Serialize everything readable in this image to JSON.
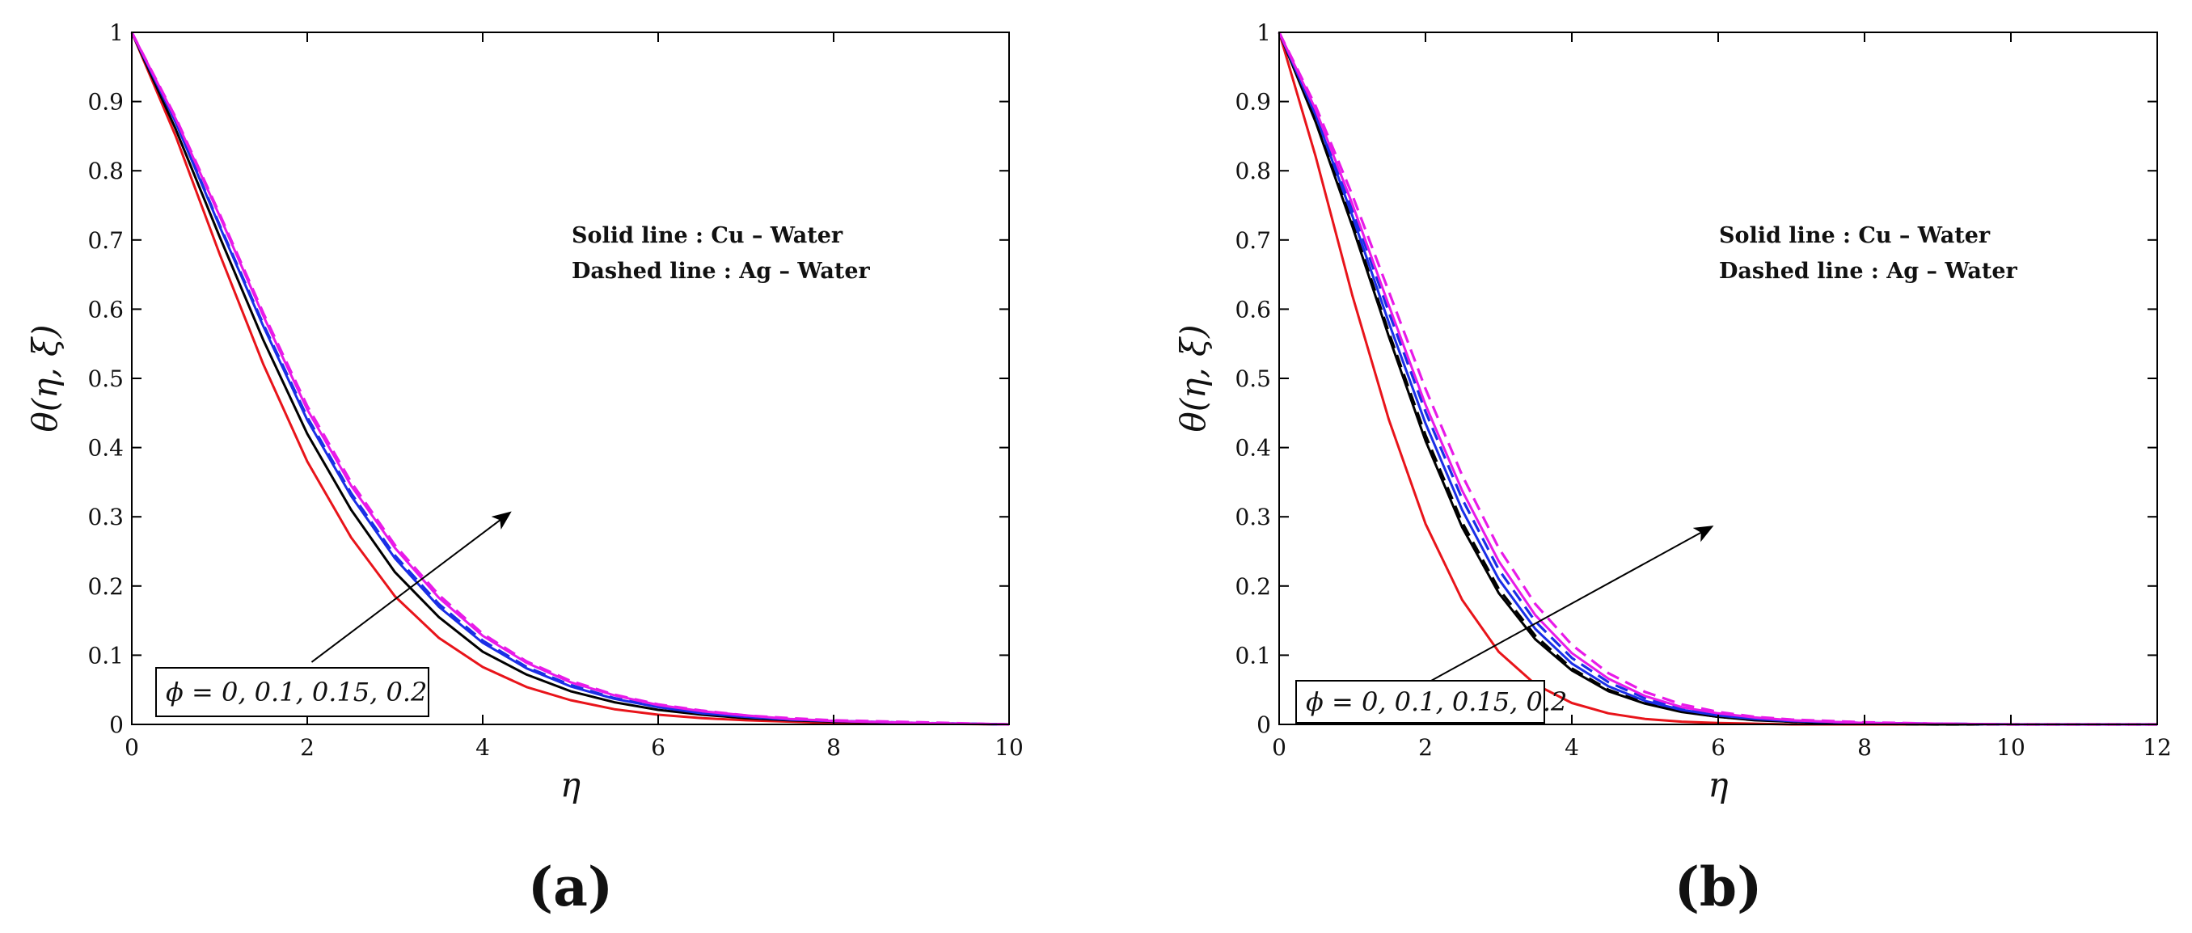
{
  "chart_data": [
    {
      "type": "line",
      "panel_label": "(a)",
      "xlabel": "η",
      "ylabel": "θ(η, ξ)",
      "xlim": [
        0,
        10
      ],
      "ylim": [
        0,
        1
      ],
      "xticks": [
        "0",
        "2",
        "4",
        "6",
        "8",
        "10"
      ],
      "yticks": [
        "0",
        "0.1",
        "0.2",
        "0.3",
        "0.4",
        "0.5",
        "0.6",
        "0.7",
        "0.8",
        "0.9",
        "1"
      ],
      "annotations": [
        "Solid line : Cu – Water",
        "Dashed line : Ag – Water"
      ],
      "phi_label": "ϕ = 0, 0.1, 0.15, 0.2",
      "arrow": {
        "from": [
          2.05,
          0.09
        ],
        "to": [
          4.3,
          0.305
        ]
      },
      "series": [
        {
          "name": "ϕ = 0",
          "color": "#e8141a",
          "dash": false,
          "x": [
            0,
            0.5,
            1,
            1.5,
            2,
            2.5,
            3,
            3.5,
            4,
            4.5,
            5,
            5.5,
            6,
            6.5,
            7,
            7.5,
            8,
            9,
            10
          ],
          "y": [
            1,
            0.85,
            0.68,
            0.52,
            0.38,
            0.27,
            0.185,
            0.125,
            0.083,
            0.054,
            0.035,
            0.022,
            0.014,
            0.009,
            0.006,
            0.004,
            0.002,
            0.001,
            0
          ]
        },
        {
          "name": "ϕ = 0.1 (Cu)",
          "color": "#000000",
          "dash": false,
          "x": [
            0,
            0.5,
            1,
            1.5,
            2,
            2.5,
            3,
            3.5,
            4,
            4.5,
            5,
            5.5,
            6,
            6.5,
            7,
            7.5,
            8,
            9,
            10
          ],
          "y": [
            1,
            0.86,
            0.705,
            0.555,
            0.42,
            0.31,
            0.22,
            0.155,
            0.105,
            0.072,
            0.048,
            0.032,
            0.021,
            0.014,
            0.009,
            0.006,
            0.004,
            0.002,
            0
          ]
        },
        {
          "name": "ϕ = 0.15 (Cu)",
          "color": "#1a2ee6",
          "dash": false,
          "x": [
            0,
            0.5,
            1,
            1.5,
            2,
            2.5,
            3,
            3.5,
            4,
            4.5,
            5,
            5.5,
            6,
            6.5,
            7,
            7.5,
            8,
            9,
            10
          ],
          "y": [
            1,
            0.87,
            0.72,
            0.575,
            0.44,
            0.33,
            0.24,
            0.17,
            0.118,
            0.081,
            0.055,
            0.037,
            0.025,
            0.016,
            0.011,
            0.007,
            0.005,
            0.002,
            0
          ]
        },
        {
          "name": "ϕ = 0.15 (Ag)",
          "color": "#1a2ee6",
          "dash": true,
          "x": [
            0,
            0.5,
            1,
            1.5,
            2,
            2.5,
            3,
            3.5,
            4,
            4.5,
            5,
            5.5,
            6,
            6.5,
            7,
            7.5,
            8,
            9,
            10
          ],
          "y": [
            1,
            0.871,
            0.722,
            0.578,
            0.444,
            0.334,
            0.244,
            0.174,
            0.121,
            0.083,
            0.057,
            0.038,
            0.026,
            0.017,
            0.011,
            0.007,
            0.005,
            0.002,
            0
          ]
        },
        {
          "name": "ϕ = 0.2 (Cu)",
          "color": "#e81ae8",
          "dash": false,
          "x": [
            0,
            0.5,
            1,
            1.5,
            2,
            2.5,
            3,
            3.5,
            4,
            4.5,
            5,
            5.5,
            6,
            6.5,
            7,
            7.5,
            8,
            9,
            10
          ],
          "y": [
            1,
            0.875,
            0.735,
            0.59,
            0.455,
            0.345,
            0.255,
            0.183,
            0.128,
            0.089,
            0.061,
            0.042,
            0.028,
            0.019,
            0.013,
            0.008,
            0.005,
            0.002,
            0
          ]
        },
        {
          "name": "ϕ = 0.2 (Ag)",
          "color": "#e81ae8",
          "dash": true,
          "x": [
            0,
            0.5,
            1,
            1.5,
            2,
            2.5,
            3,
            3.5,
            4,
            4.5,
            5,
            5.5,
            6,
            6.5,
            7,
            7.5,
            8,
            9,
            10
          ],
          "y": [
            1,
            0.877,
            0.738,
            0.594,
            0.46,
            0.35,
            0.259,
            0.187,
            0.131,
            0.091,
            0.063,
            0.043,
            0.029,
            0.02,
            0.013,
            0.009,
            0.006,
            0.003,
            0
          ]
        }
      ]
    },
    {
      "type": "line",
      "panel_label": "(b)",
      "xlabel": "η",
      "ylabel": "θ(η, ξ)",
      "xlim": [
        0,
        12
      ],
      "ylim": [
        0,
        1
      ],
      "xticks": [
        "0",
        "2",
        "4",
        "6",
        "8",
        "10",
        "12"
      ],
      "yticks": [
        "0",
        "0.1",
        "0.2",
        "0.3",
        "0.4",
        "0.5",
        "0.6",
        "0.7",
        "0.8",
        "0.9",
        "1"
      ],
      "annotations": [
        "Solid line : Cu – Water",
        "Dashed line : Ag – Water"
      ],
      "phi_label": "ϕ = 0, 0.1, 0.15, 0.2",
      "arrow": {
        "from": [
          1.85,
          0.05
        ],
        "to": [
          5.9,
          0.285
        ]
      },
      "series": [
        {
          "name": "ϕ = 0",
          "color": "#e8141a",
          "dash": false,
          "x": [
            0,
            0.5,
            1,
            1.5,
            2,
            2.5,
            3,
            3.5,
            4,
            4.5,
            5,
            5.5,
            6,
            6.5,
            7,
            8,
            9,
            10,
            12
          ],
          "y": [
            1,
            0.82,
            0.62,
            0.44,
            0.29,
            0.18,
            0.105,
            0.058,
            0.031,
            0.016,
            0.008,
            0.004,
            0.002,
            0.001,
            0,
            0,
            0,
            0,
            0
          ]
        },
        {
          "name": "ϕ = 0.1 (Cu)",
          "color": "#000000",
          "dash": false,
          "x": [
            0,
            0.5,
            1,
            1.5,
            2,
            2.5,
            3,
            3.5,
            4,
            4.5,
            5,
            5.5,
            6,
            6.5,
            7,
            8,
            9,
            10,
            12
          ],
          "y": [
            1,
            0.87,
            0.72,
            0.56,
            0.41,
            0.285,
            0.19,
            0.123,
            0.078,
            0.048,
            0.03,
            0.018,
            0.011,
            0.006,
            0.004,
            0.001,
            0,
            0,
            0
          ]
        },
        {
          "name": "ϕ = 0.1 (Ag)",
          "color": "#000000",
          "dash": true,
          "x": [
            0,
            0.5,
            1,
            1.5,
            2,
            2.5,
            3,
            3.5,
            4,
            4.5,
            5,
            5.5,
            6,
            6.5,
            7,
            8,
            9,
            10,
            12
          ],
          "y": [
            1,
            0.872,
            0.725,
            0.566,
            0.418,
            0.292,
            0.196,
            0.128,
            0.081,
            0.05,
            0.031,
            0.019,
            0.011,
            0.007,
            0.004,
            0.001,
            0,
            0,
            0
          ]
        },
        {
          "name": "ϕ = 0.15 (Cu)",
          "color": "#1a2ee6",
          "dash": false,
          "x": [
            0,
            0.5,
            1,
            1.5,
            2,
            2.5,
            3,
            3.5,
            4,
            4.5,
            5,
            5.5,
            6,
            6.5,
            7,
            8,
            9,
            10,
            12
          ],
          "y": [
            1,
            0.88,
            0.735,
            0.58,
            0.435,
            0.31,
            0.21,
            0.138,
            0.088,
            0.055,
            0.034,
            0.021,
            0.013,
            0.008,
            0.005,
            0.002,
            0.001,
            0,
            0
          ]
        },
        {
          "name": "ϕ = 0.15 (Ag)",
          "color": "#1a2ee6",
          "dash": true,
          "x": [
            0,
            0.5,
            1,
            1.5,
            2,
            2.5,
            3,
            3.5,
            4,
            4.5,
            5,
            5.5,
            6,
            6.5,
            7,
            8,
            9,
            10,
            12
          ],
          "y": [
            1,
            0.884,
            0.745,
            0.595,
            0.452,
            0.326,
            0.224,
            0.149,
            0.096,
            0.061,
            0.038,
            0.023,
            0.014,
            0.009,
            0.005,
            0.002,
            0.001,
            0,
            0
          ]
        },
        {
          "name": "ϕ = 0.2 (Cu)",
          "color": "#e81ae8",
          "dash": false,
          "x": [
            0,
            0.5,
            1,
            1.5,
            2,
            2.5,
            3,
            3.5,
            4,
            4.5,
            5,
            5.5,
            6,
            6.5,
            7,
            8,
            9,
            10,
            12
          ],
          "y": [
            1,
            0.888,
            0.752,
            0.605,
            0.462,
            0.338,
            0.236,
            0.158,
            0.103,
            0.066,
            0.041,
            0.025,
            0.016,
            0.01,
            0.006,
            0.002,
            0.001,
            0,
            0
          ]
        },
        {
          "name": "ϕ = 0.2 (Ag)",
          "color": "#e81ae8",
          "dash": true,
          "x": [
            0,
            0.5,
            1,
            1.5,
            2,
            2.5,
            3,
            3.5,
            4,
            4.5,
            5,
            5.5,
            6,
            6.5,
            7,
            8,
            9,
            10,
            12
          ],
          "y": [
            1,
            0.893,
            0.765,
            0.625,
            0.485,
            0.36,
            0.255,
            0.174,
            0.115,
            0.074,
            0.047,
            0.029,
            0.018,
            0.011,
            0.007,
            0.003,
            0.001,
            0,
            0
          ]
        }
      ]
    }
  ]
}
